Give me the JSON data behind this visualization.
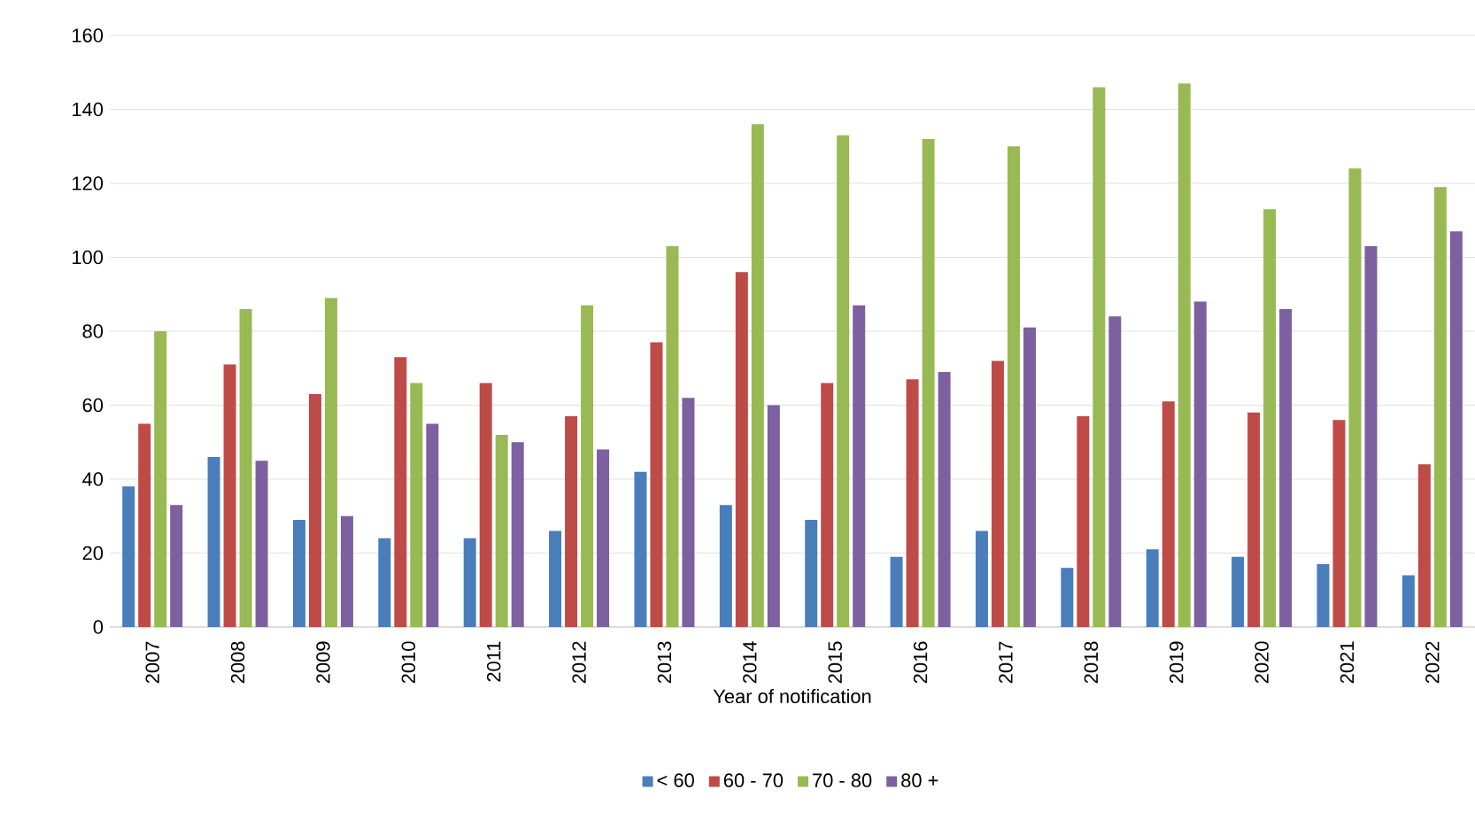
{
  "chart_data": {
    "type": "bar",
    "xlabel": "Year of notification",
    "categories": [
      "2007",
      "2008",
      "2009",
      "2010",
      "2011",
      "2012",
      "2013",
      "2014",
      "2015",
      "2016",
      "2017",
      "2018",
      "2019",
      "2020",
      "2021",
      "2022"
    ],
    "series": [
      {
        "name": "< 60",
        "color": "#4a7ebb",
        "values": [
          38,
          46,
          29,
          24,
          24,
          26,
          42,
          33,
          29,
          19,
          26,
          16,
          21,
          19,
          17,
          14
        ]
      },
      {
        "name": "60 - 70",
        "color": "#be4b48",
        "values": [
          55,
          71,
          63,
          73,
          66,
          57,
          77,
          96,
          66,
          67,
          72,
          57,
          61,
          58,
          56,
          44
        ]
      },
      {
        "name": "70 - 80",
        "color": "#98b954",
        "values": [
          80,
          86,
          89,
          66,
          52,
          87,
          103,
          136,
          133,
          132,
          130,
          146,
          147,
          113,
          124,
          119
        ]
      },
      {
        "name": "80 +",
        "color": "#7d60a0",
        "values": [
          33,
          45,
          30,
          55,
          50,
          48,
          62,
          60,
          87,
          69,
          81,
          84,
          88,
          86,
          103,
          107
        ]
      }
    ],
    "ylim": [
      0,
      160
    ],
    "yticks": [
      0,
      20,
      40,
      60,
      80,
      100,
      120,
      140,
      160
    ],
    "grid": "y",
    "legend": "bottom"
  }
}
